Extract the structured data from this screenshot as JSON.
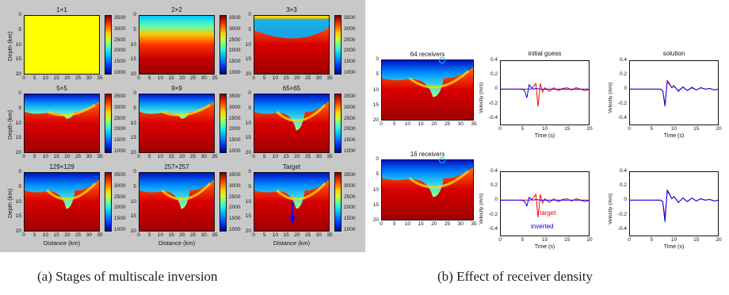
{
  "panel_a": {
    "titles": [
      "1×1",
      "2×2",
      "3×3",
      "5×5",
      "9×9",
      "65×65",
      "129×129",
      "257×257",
      "Target"
    ],
    "depth_label": "Depth (km)",
    "distance_label": "Distance (km)",
    "depth_ticks": [
      "0",
      "5",
      "10",
      "15",
      "20"
    ],
    "distance_ticks": [
      "0",
      "5",
      "10",
      "15",
      "20",
      "25",
      "30",
      "35"
    ],
    "colorbar_ticks": [
      "3500",
      "3000",
      "2500",
      "2000",
      "1500",
      "1000"
    ]
  },
  "panel_b": {
    "row_titles": [
      "64 receivers",
      "16 receivers"
    ],
    "col_titles": [
      "initial guess",
      "solution"
    ],
    "depth_ticks": [
      "0",
      "5",
      "10",
      "15",
      "20"
    ],
    "distance_ticks": [
      "0",
      "5",
      "10",
      "15",
      "20",
      "25",
      "30",
      "35"
    ],
    "velocity_label": "Velocity (m/s)",
    "time_label": "Time (s)",
    "velocity_ticks": [
      "0.4",
      "0.2",
      "0",
      "-0.2",
      "-0.4"
    ],
    "time_ticks": [
      "0",
      "5",
      "10",
      "15",
      "20"
    ],
    "legend": {
      "target": "target",
      "inverted": "inverted"
    }
  },
  "captions": {
    "a": "(a) Stages of multiscale inversion",
    "b": "(b) Effect of receiver density"
  },
  "colors": {
    "target": "#ff0000",
    "inverted": "#0000ff"
  },
  "chart_data": [
    {
      "type": "line",
      "title": "initial guess",
      "xlabel": "Time (s)",
      "ylabel": "Velocity (m/s)",
      "xlim": [
        0,
        20
      ],
      "ylim": [
        -0.5,
        0.4
      ],
      "series": [
        {
          "name": "target",
          "x": [
            0,
            5,
            6.5,
            7,
            7.5,
            8,
            8.5,
            9,
            9.5,
            10,
            11,
            12,
            13,
            14,
            15,
            16,
            17,
            18,
            19,
            20
          ],
          "y": [
            0,
            0,
            0,
            0,
            0.04,
            0.08,
            -0.24,
            0.08,
            -0.04,
            0.02,
            -0.03,
            0.02,
            -0.02,
            0.01,
            0.02,
            -0.01,
            0.02,
            0,
            -0.02,
            0
          ]
        },
        {
          "name": "inverted",
          "x": [
            0,
            5,
            5.5,
            6,
            6.5,
            7,
            7.5,
            8,
            9,
            10,
            20
          ],
          "y": [
            0,
            0,
            -0.02,
            -0.12,
            0.06,
            0.02,
            0,
            0.01,
            0,
            0,
            0
          ]
        }
      ]
    },
    {
      "type": "line",
      "title": "solution",
      "xlabel": "Time (s)",
      "ylabel": "Velocity (m/s)",
      "xlim": [
        0,
        20
      ],
      "ylim": [
        -0.5,
        0.4
      ],
      "series": [
        {
          "name": "target",
          "x": [
            0,
            7,
            7.5,
            8,
            8.5,
            9,
            9.5,
            10,
            11,
            12,
            13,
            14,
            15,
            16,
            17,
            18,
            19,
            20
          ],
          "y": [
            0,
            0,
            -0.02,
            -0.24,
            0.12,
            0.08,
            0.02,
            0.05,
            -0.03,
            0.03,
            -0.02,
            0.03,
            -0.01,
            0.02,
            0,
            0.01,
            -0.01,
            0
          ]
        },
        {
          "name": "inverted",
          "x": [
            0,
            7,
            7.5,
            8,
            8.5,
            9,
            9.5,
            10,
            11,
            12,
            13,
            14,
            15,
            16,
            17,
            18,
            19,
            20
          ],
          "y": [
            0,
            0,
            -0.02,
            -0.22,
            0.1,
            0.07,
            0.02,
            0.04,
            -0.02,
            0.03,
            -0.02,
            0.02,
            -0.01,
            0.02,
            0,
            0.01,
            -0.01,
            0
          ]
        }
      ]
    },
    {
      "type": "line",
      "title": "",
      "xlabel": "Time (s)",
      "ylabel": "Velocity (m/s)",
      "xlim": [
        0,
        20
      ],
      "ylim": [
        -0.5,
        0.4
      ],
      "series": [
        {
          "name": "target",
          "x": [
            0,
            5,
            6.5,
            7,
            7.5,
            8,
            8.5,
            9,
            9.5,
            10,
            11,
            12,
            13,
            14,
            15,
            16,
            17,
            18,
            19,
            20
          ],
          "y": [
            0,
            0,
            0,
            0,
            0.04,
            0.08,
            -0.24,
            0.08,
            -0.04,
            0.02,
            -0.03,
            0.02,
            -0.02,
            0.01,
            0.02,
            -0.01,
            0.02,
            0,
            -0.02,
            0
          ]
        },
        {
          "name": "inverted",
          "x": [
            0,
            5,
            5.5,
            6,
            6.5,
            7,
            7.5,
            8,
            9,
            20
          ],
          "y": [
            0,
            0,
            -0.02,
            -0.08,
            0.04,
            0.01,
            0,
            0.01,
            0,
            0
          ]
        }
      ]
    },
    {
      "type": "line",
      "title": "",
      "xlabel": "Time (s)",
      "ylabel": "Velocity (m/s)",
      "xlim": [
        0,
        20
      ],
      "ylim": [
        -0.5,
        0.4
      ],
      "series": [
        {
          "name": "target",
          "x": [
            0,
            7,
            7.5,
            8,
            8.5,
            9,
            9.5,
            10,
            11,
            12,
            13,
            14,
            15,
            16,
            17,
            18,
            19,
            20
          ],
          "y": [
            0,
            0,
            -0.02,
            -0.24,
            0.12,
            0.08,
            0.02,
            0.05,
            -0.03,
            0.03,
            -0.02,
            0.03,
            -0.01,
            0.02,
            0,
            0.01,
            -0.01,
            0
          ]
        },
        {
          "name": "inverted",
          "x": [
            0,
            7,
            7.5,
            8,
            8.5,
            9,
            9.5,
            10,
            11,
            12,
            13,
            14,
            15,
            16,
            17,
            18,
            19,
            20
          ],
          "y": [
            0,
            0,
            -0.02,
            -0.3,
            0.14,
            0.09,
            0.02,
            0.05,
            -0.03,
            0.03,
            -0.02,
            0.03,
            -0.01,
            0.02,
            0,
            0.01,
            -0.01,
            0
          ]
        }
      ]
    }
  ]
}
